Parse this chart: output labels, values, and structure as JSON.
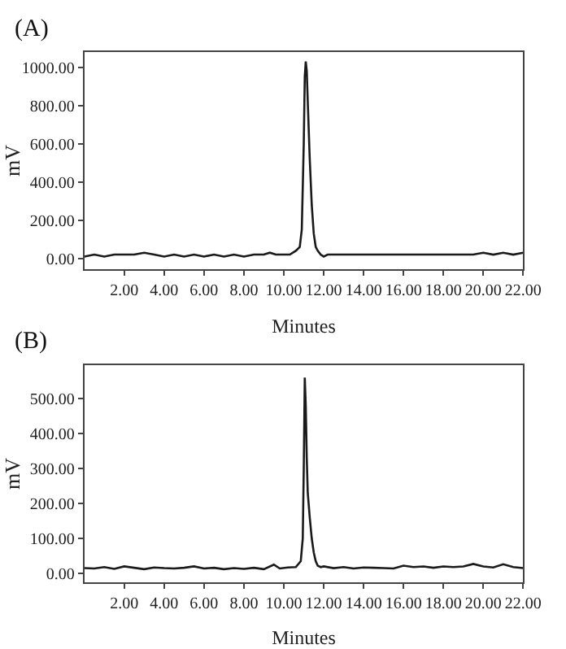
{
  "chart_data": [
    {
      "type": "line",
      "title": "(A)",
      "xlabel": "Minutes",
      "ylabel": "mV",
      "xlim": [
        0,
        22
      ],
      "ylim": [
        -57,
        1080
      ],
      "marker": "none",
      "line_style": "solid",
      "xticks": [
        {
          "value": 2,
          "label": "2.00"
        },
        {
          "value": 4,
          "label": "4.00"
        },
        {
          "value": 6,
          "label": "6.00"
        },
        {
          "value": 8,
          "label": "8.00"
        },
        {
          "value": 10,
          "label": "10.00"
        },
        {
          "value": 12,
          "label": "12.00"
        },
        {
          "value": 14,
          "label": "14.00"
        },
        {
          "value": 16,
          "label": "16.00"
        },
        {
          "value": 18,
          "label": "18.00"
        },
        {
          "value": 20,
          "label": "20.00"
        },
        {
          "value": 22,
          "label": "22.00"
        }
      ],
      "yticks": [
        {
          "value": 0,
          "label": "0.00"
        },
        {
          "value": 200,
          "label": "200.00"
        },
        {
          "value": 400,
          "label": "400.00"
        },
        {
          "value": 600,
          "label": "600.00"
        },
        {
          "value": 800,
          "label": "800.00"
        },
        {
          "value": 1000,
          "label": "1000.00"
        }
      ],
      "series": [
        {
          "color": "#1a1a1a",
          "x": [
            0,
            0.5,
            1,
            1.5,
            2,
            2.5,
            3,
            3.5,
            4,
            4.5,
            5,
            5.5,
            6,
            6.5,
            7,
            7.5,
            8,
            8.5,
            9,
            9.3,
            9.6,
            10,
            10.3,
            10.6,
            10.8,
            10.9,
            11.0,
            11.05,
            11.1,
            11.15,
            11.2,
            11.3,
            11.4,
            11.5,
            11.6,
            11.7,
            11.85,
            12.0,
            12.2,
            12.5,
            13,
            13.5,
            14,
            14.5,
            15,
            15.5,
            16,
            16.5,
            17,
            17.5,
            18,
            18.5,
            19,
            19.5,
            20,
            20.5,
            21,
            21.5,
            22
          ],
          "values": [
            10,
            20,
            10,
            20,
            20,
            20,
            30,
            20,
            10,
            20,
            10,
            20,
            10,
            20,
            10,
            20,
            10,
            20,
            20,
            30,
            20,
            20,
            20,
            40,
            60,
            150,
            600,
            950,
            1030,
            980,
            820,
            520,
            280,
            130,
            60,
            40,
            20,
            10,
            20,
            20,
            20,
            20,
            20,
            20,
            20,
            20,
            20,
            20,
            20,
            20,
            20,
            20,
            20,
            20,
            30,
            20,
            30,
            20,
            30
          ]
        }
      ]
    },
    {
      "type": "line",
      "title": "(B)",
      "xlabel": "Minutes",
      "ylabel": "mV",
      "xlim": [
        0,
        22
      ],
      "ylim": [
        -26,
        596
      ],
      "marker": "none",
      "line_style": "solid",
      "xticks": [
        {
          "value": 2,
          "label": "2.00"
        },
        {
          "value": 4,
          "label": "4.00"
        },
        {
          "value": 6,
          "label": "6.00"
        },
        {
          "value": 8,
          "label": "8.00"
        },
        {
          "value": 10,
          "label": "10.00"
        },
        {
          "value": 12,
          "label": "12.00"
        },
        {
          "value": 14,
          "label": "14.00"
        },
        {
          "value": 16,
          "label": "16.00"
        },
        {
          "value": 18,
          "label": "18.00"
        },
        {
          "value": 20,
          "label": "20.00"
        },
        {
          "value": 22,
          "label": "22.00"
        }
      ],
      "yticks": [
        {
          "value": 0,
          "label": "0.00"
        },
        {
          "value": 100,
          "label": "100.00"
        },
        {
          "value": 200,
          "label": "200.00"
        },
        {
          "value": 300,
          "label": "300.00"
        },
        {
          "value": 400,
          "label": "400.00"
        },
        {
          "value": 500,
          "label": "500.00"
        }
      ],
      "series": [
        {
          "color": "#1a1a1a",
          "x": [
            0,
            0.5,
            1,
            1.5,
            2,
            2.5,
            3,
            3.5,
            4,
            4.5,
            5,
            5.5,
            6,
            6.5,
            7,
            7.5,
            8,
            8.5,
            9,
            9.5,
            9.8,
            10.2,
            10.6,
            10.85,
            10.95,
            11.0,
            11.05,
            11.1,
            11.15,
            11.2,
            11.3,
            11.4,
            11.5,
            11.6,
            11.7,
            11.85,
            12.0,
            12.5,
            13,
            13.5,
            14,
            14.5,
            15,
            15.5,
            16,
            16.5,
            17,
            17.5,
            18,
            18.5,
            19,
            19.5,
            20,
            20.5,
            21,
            21.5,
            22
          ],
          "values": [
            15,
            14,
            18,
            13,
            20,
            16,
            12,
            17,
            15,
            14,
            16,
            20,
            14,
            16,
            12,
            15,
            13,
            16,
            12,
            25,
            14,
            17,
            18,
            35,
            100,
            300,
            560,
            480,
            330,
            230,
            160,
            100,
            60,
            35,
            22,
            18,
            20,
            15,
            18,
            14,
            17,
            16,
            15,
            14,
            22,
            18,
            20,
            16,
            20,
            18,
            20,
            27,
            20,
            17,
            26,
            18,
            15
          ]
        }
      ]
    }
  ]
}
